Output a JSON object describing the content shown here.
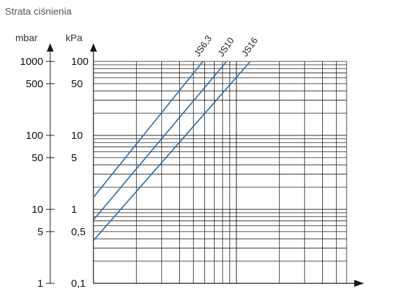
{
  "chart_data": {
    "type": "line",
    "title": "Strata ciśnienia",
    "y_scale": "log",
    "x_scale": "log",
    "grid": true,
    "y_range_kpa": [
      0.1,
      100
    ],
    "y_axis_left": {
      "unit_label": "mbar",
      "tick_labels": [
        "1000",
        "500",
        "100",
        "50",
        "10",
        "5",
        "1"
      ],
      "tick_values_kpa": [
        100,
        50,
        10,
        5,
        1,
        0.5,
        0.1
      ]
    },
    "y_axis_right": {
      "unit_label": "kPa",
      "tick_labels": [
        "100",
        "50",
        "10",
        "5",
        "1",
        "0,5",
        "0,1"
      ],
      "tick_values_kpa": [
        100,
        50,
        10,
        5,
        1,
        0.5,
        0.1
      ]
    },
    "series": [
      {
        "name": "JS6,3",
        "y_at_left_edge_kpa": 1.45,
        "y_at_top_kpa": 100
      },
      {
        "name": "JS10",
        "y_at_left_edge_kpa": 0.72,
        "y_at_top_kpa": 100
      },
      {
        "name": "JS16",
        "y_at_left_edge_kpa": 0.38,
        "y_at_top_kpa": 100
      }
    ],
    "colors": {
      "series": "#2f6ea3",
      "grid": "#1a1a1a",
      "axis": "#1a1a1a"
    }
  }
}
